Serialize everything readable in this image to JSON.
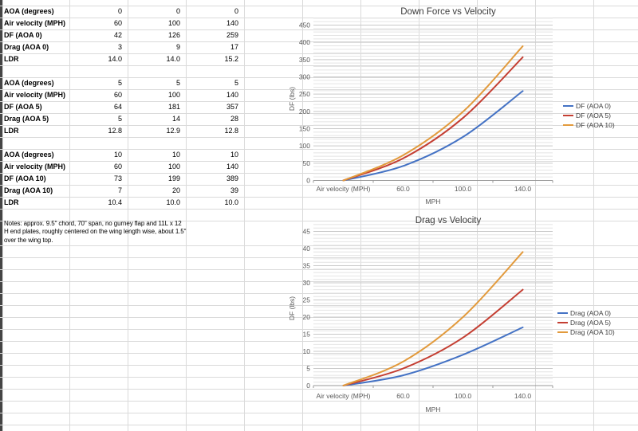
{
  "app": {
    "kind": "spreadsheet-with-charts"
  },
  "table": {
    "rows": [
      {
        "label": "AOA (degrees)",
        "values": [
          "0",
          "0",
          "0"
        ]
      },
      {
        "label": "Air velocity (MPH)",
        "values": [
          "60",
          "100",
          "140"
        ]
      },
      {
        "label": "DF (AOA 0)",
        "values": [
          "42",
          "126",
          "259"
        ]
      },
      {
        "label": "Drag (AOA 0)",
        "values": [
          "3",
          "9",
          "17"
        ]
      },
      {
        "label": "LDR",
        "values": [
          "14.0",
          "14.0",
          "15.2"
        ]
      },
      {
        "label": "",
        "values": []
      },
      {
        "label": "AOA (degrees)",
        "values": [
          "5",
          "5",
          "5"
        ]
      },
      {
        "label": "Air velocity (MPH)",
        "values": [
          "60",
          "100",
          "140"
        ]
      },
      {
        "label": "DF (AOA 5)",
        "values": [
          "64",
          "181",
          "357"
        ]
      },
      {
        "label": "Drag (AOA 5)",
        "values": [
          "5",
          "14",
          "28"
        ]
      },
      {
        "label": "LDR",
        "values": [
          "12.8",
          "12.9",
          "12.8"
        ]
      },
      {
        "label": "",
        "values": []
      },
      {
        "label": "AOA (degrees)",
        "values": [
          "10",
          "10",
          "10"
        ]
      },
      {
        "label": "Air velocity (MPH)",
        "values": [
          "60",
          "100",
          "140"
        ]
      },
      {
        "label": "DF (AOA 10)",
        "values": [
          "73",
          "199",
          "389"
        ]
      },
      {
        "label": "Drag (AOA 10)",
        "values": [
          "7",
          "20",
          "39"
        ]
      },
      {
        "label": "LDR",
        "values": [
          "10.4",
          "10.0",
          "10.0"
        ]
      }
    ]
  },
  "notes": {
    "lines": [
      "Notes: approx. 9.5\" chord, 70\" span, no gurney flap and 11L x 12",
      "H end plates, roughly centered on the wing length wise, about 1.5\"",
      "over the wing top."
    ]
  },
  "chart_data": [
    {
      "type": "line",
      "smooth": true,
      "title": "Down Force vs Velocity",
      "categories": [
        "Air velocity (MPH)",
        "60.0",
        "100.0",
        "140.0"
      ],
      "series": [
        {
          "name": "DF (AOA 0)",
          "values": [
            0,
            42,
            126,
            259
          ],
          "color": "#4472C4"
        },
        {
          "name": "DF (AOA 5)",
          "values": [
            0,
            64,
            181,
            357
          ],
          "color": "#C43E32"
        },
        {
          "name": "DF (AOA 10)",
          "values": [
            0,
            73,
            199,
            389
          ],
          "color": "#E29A3C"
        }
      ],
      "xlabel": "MPH",
      "ylabel": "DF (lbs)",
      "ylim": [
        0,
        450
      ],
      "y_major": 50,
      "y_minor": 10,
      "grid": true,
      "legend_position": "right"
    },
    {
      "type": "line",
      "smooth": true,
      "title": "Drag vs Velocity",
      "categories": [
        "Air velocity (MPH)",
        "60.0",
        "100.0",
        "140.0"
      ],
      "series": [
        {
          "name": "Drag (AOA 0)",
          "values": [
            0,
            3,
            9,
            17
          ],
          "color": "#4472C4"
        },
        {
          "name": "Drag (AOA 5)",
          "values": [
            0,
            5,
            14,
            28
          ],
          "color": "#C43E32"
        },
        {
          "name": "Drag (AOA 10)",
          "values": [
            0,
            7,
            20,
            39
          ],
          "color": "#E29A3C"
        }
      ],
      "xlabel": "MPH",
      "ylabel": "DF (lbs)",
      "ylim": [
        0,
        45
      ],
      "y_major": 5,
      "y_minor": 1,
      "grid": true,
      "legend_position": "right"
    }
  ],
  "colors": {
    "sheet_gridline": "#dadada",
    "chart_grid_minor": "#e4e4e4",
    "chart_grid_major": "#c9c9c9",
    "axis_line": "#9a9a9a",
    "chart_text": "#595959",
    "title_text": "#3b3b3b",
    "legend_text": "#3d3d3d",
    "cell_text": "#000000"
  }
}
